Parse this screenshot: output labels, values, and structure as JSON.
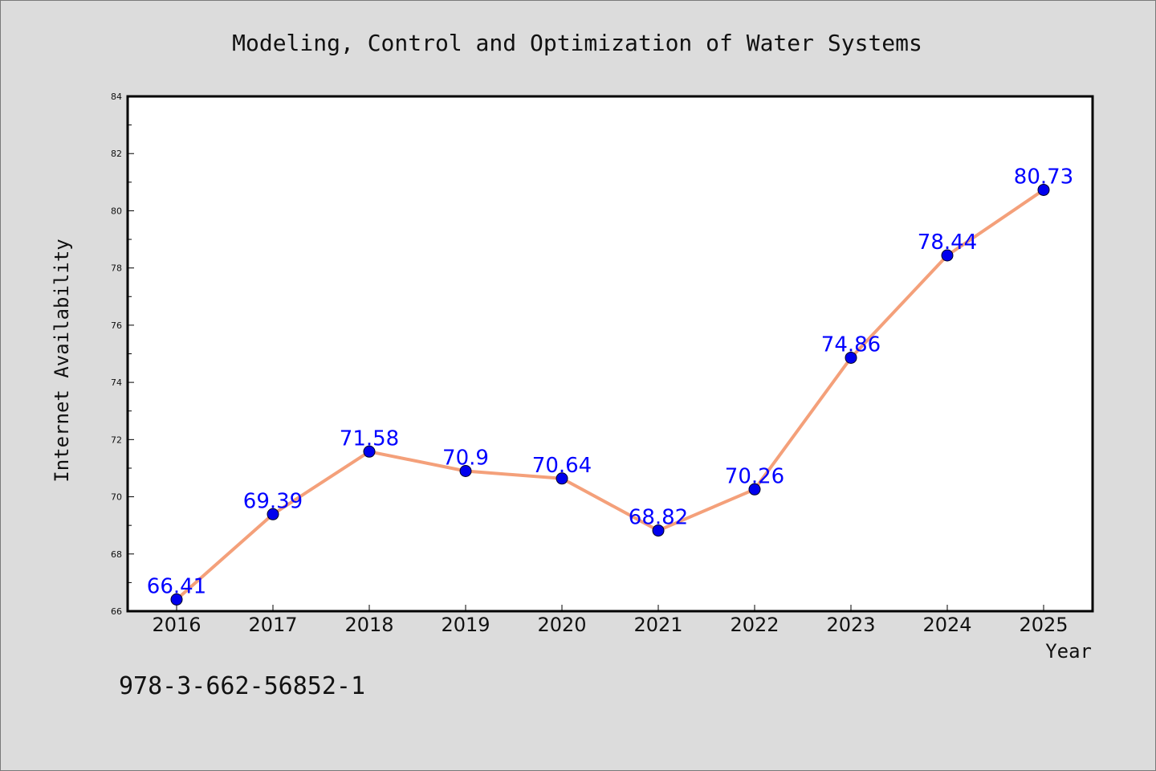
{
  "colors": {
    "background": "#dcdcdc",
    "plot_background": "#ffffff",
    "line": "#f4a07a",
    "marker": "#0000ee",
    "data_label": "#0000ff",
    "text": "#111111"
  },
  "footer": {
    "text": "978-3-662-56852-1"
  },
  "chart_data": {
    "type": "line",
    "title": "Modeling, Control and Optimization of Water Systems",
    "xlabel": "Year",
    "ylabel": "Internet Availability",
    "categories": [
      "2016",
      "2017",
      "2018",
      "2019",
      "2020",
      "2021",
      "2022",
      "2023",
      "2024",
      "2025"
    ],
    "series": [
      {
        "values": [
          66.41,
          69.39,
          71.58,
          70.9,
          70.64,
          68.82,
          70.26,
          74.86,
          78.44,
          80.73
        ],
        "labels": [
          "66.41",
          "69.39",
          "71.58",
          "70.9",
          "70.64",
          "68.82",
          "70.26",
          "74.86",
          "78.44",
          "80.73"
        ]
      }
    ],
    "ylim": [
      66,
      84
    ],
    "yticks": [
      "66",
      "68",
      "70",
      "72",
      "74",
      "76",
      "78",
      "80",
      "82",
      "84"
    ],
    "grid": false,
    "legend": "none"
  }
}
